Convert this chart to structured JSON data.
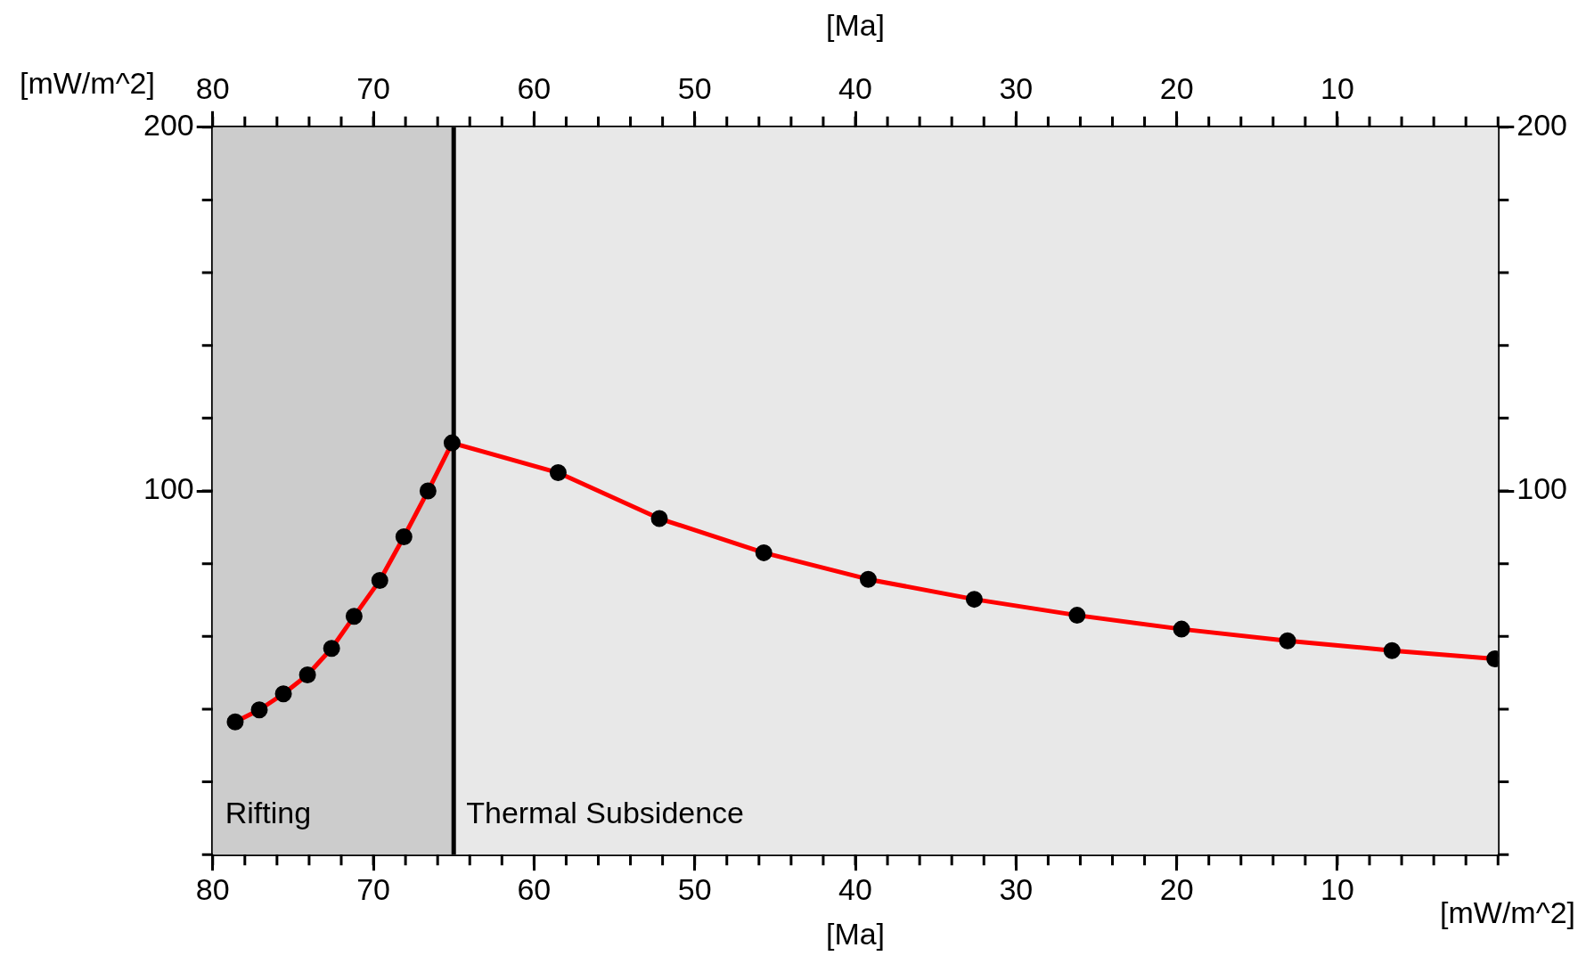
{
  "chart_data": {
    "type": "line",
    "xlabel": "[Ma]",
    "x2label": "[Ma]",
    "ylabel": "[mW/m^2]",
    "y2label": "[mW/m^2]",
    "x": [
      78.6,
      77.1,
      75.6,
      74.1,
      72.6,
      71.2,
      69.6,
      68.1,
      66.6,
      65.1,
      58.5,
      52.2,
      45.7,
      39.2,
      32.6,
      26.2,
      19.7,
      13.1,
      6.6,
      0.2
    ],
    "series": [
      {
        "color": "#ff0000",
        "values": [
          36.5,
          39.8,
          44.2,
          49.4,
          56.7,
          65.5,
          75.4,
          87.4,
          100,
          113.2,
          105,
          92.4,
          83,
          75.7,
          70.2,
          65.8,
          62,
          58.8,
          56.1,
          53.8
        ]
      }
    ],
    "marker": "circle",
    "line_style": "solid",
    "xlim": [
      80,
      0
    ],
    "x2lim": [
      80,
      0
    ],
    "xticks": [
      80,
      70,
      60,
      50,
      40,
      30,
      20,
      10
    ],
    "x2ticks": [
      80,
      70,
      60,
      50,
      40,
      30,
      20,
      10
    ],
    "ylim": [
      0,
      200
    ],
    "y2lim": [
      0,
      200
    ],
    "yticks": [
      100,
      200
    ],
    "y2ticks": [
      100,
      200
    ],
    "bands": [
      {
        "axis": "x",
        "from": 80,
        "to": 65,
        "label": "Rifting",
        "color": "#cccccc"
      },
      {
        "axis": "x",
        "from": 65,
        "to": 0,
        "label": "Thermal Subsidence",
        "color": "#e8e8e8"
      }
    ],
    "ref_lines": [
      {
        "axis": "x",
        "value": 65,
        "color": "#000000",
        "line_style": "solid"
      }
    ]
  }
}
